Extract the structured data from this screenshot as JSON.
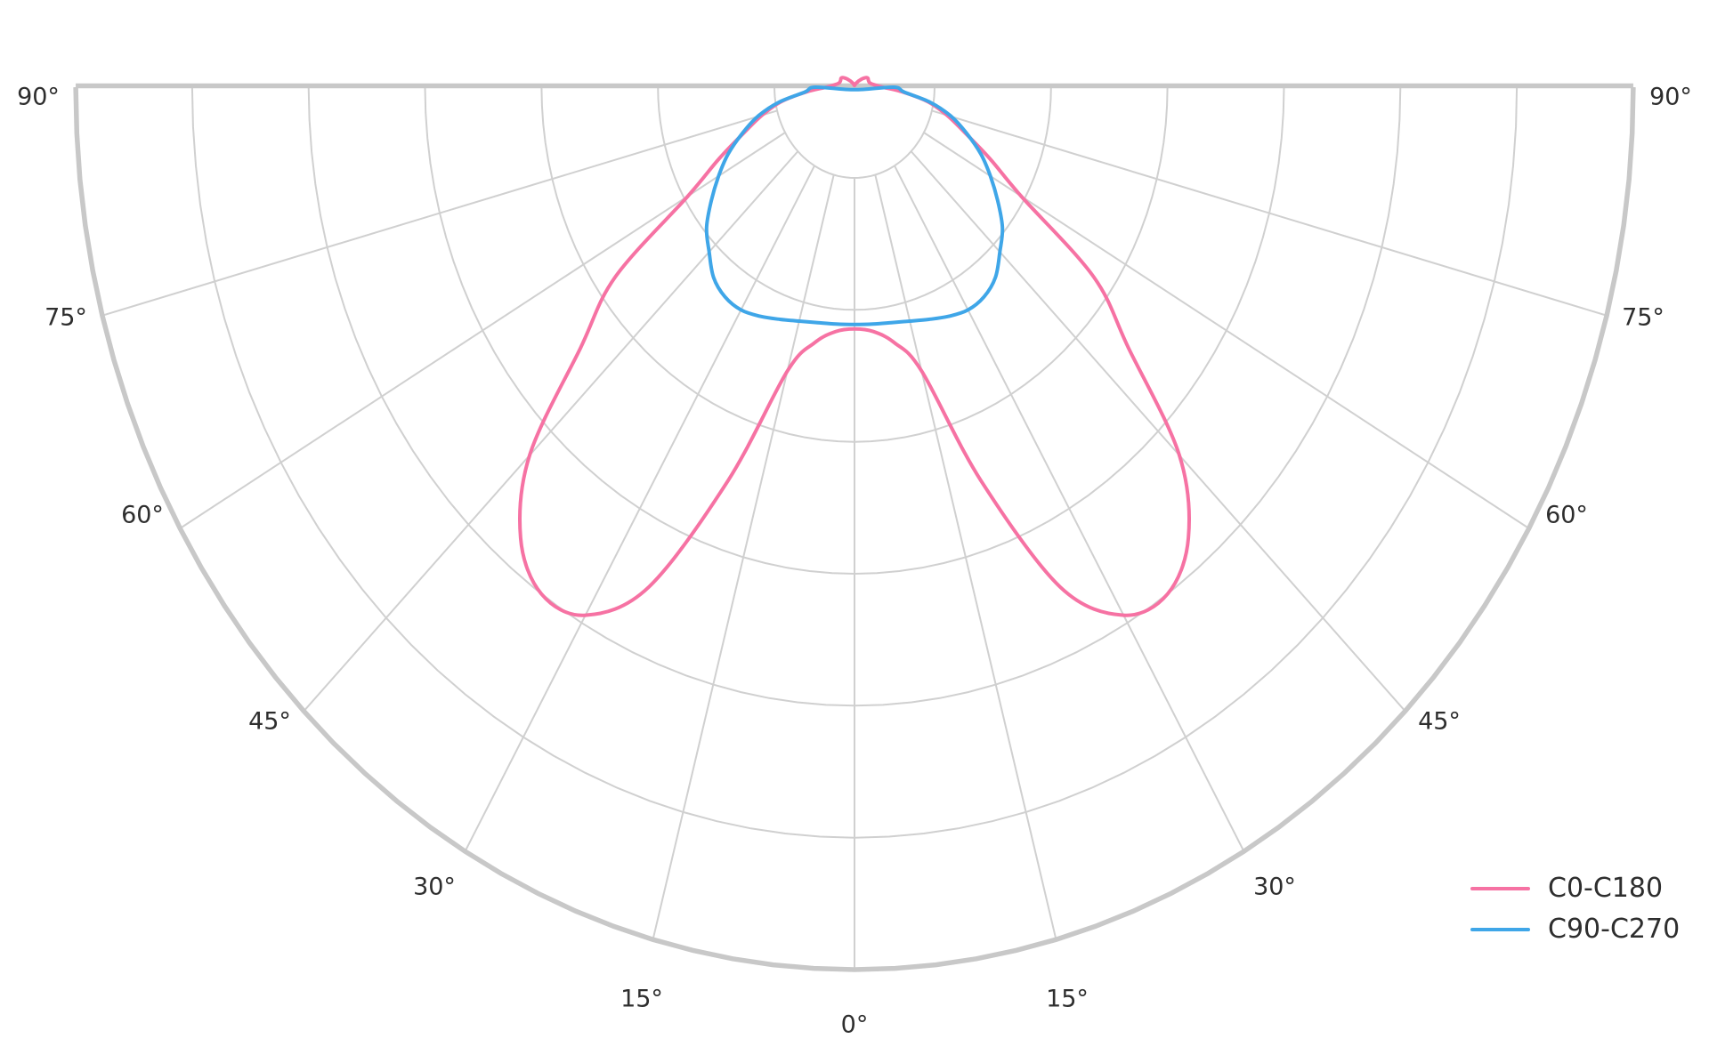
{
  "page": {
    "background": "#ffffff",
    "text_color": "#2e2e2e"
  },
  "chart_data": {
    "type": "polar",
    "subtype": "photometric-intensity-distribution",
    "title": "",
    "angle_unit": "degrees from nadir (0° at bottom, 90° at horizon, mirrored left/right)",
    "angle_ticks_deg": [
      0,
      15,
      30,
      45,
      60,
      75,
      90
    ],
    "angle_tick_labels": [
      "0°",
      "15°",
      "30°",
      "45°",
      "60°",
      "75°",
      "90°"
    ],
    "mirrored_left_right": true,
    "radial_axis": {
      "gridline_rings": 7,
      "tick_labels_visible": false,
      "inner_hole": true,
      "scale_note": "no radial value labels shown; r given as fraction of outer ring (estimated from plot)"
    },
    "grid": {
      "spoke_step_deg": 15,
      "gridline_color": "#d0d0d0",
      "spine_color": "#c8c8c8"
    },
    "series": [
      {
        "name": "C0-C180",
        "color": "#f672a3",
        "gamma_start_deg": 0,
        "gamma_step_deg": 5,
        "r_rel": [
          0.274,
          0.278,
          0.294,
          0.333,
          0.474,
          0.625,
          0.691,
          0.701,
          0.667,
          0.59,
          0.459,
          0.375,
          0.247,
          0.192,
          0.151,
          0.123,
          0.096,
          0.062,
          0.036,
          0.027,
          0.022,
          0.02,
          0.0195,
          0.0195,
          0.02,
          0.019,
          0.016,
          0.013,
          0.01,
          0.008,
          0.006,
          0.005,
          0.004,
          0.003,
          0.0025,
          0.002,
          0.002
        ],
        "shape_note": "batwing: peak near 35° both sides, local max at 0°, tiny uplight bumps just above 90° line near center"
      },
      {
        "name": "C90-C270",
        "color": "#3fa6e8",
        "gamma_start_deg": 0,
        "gamma_step_deg": 5,
        "r_rel": [
          0.269,
          0.2695,
          0.271,
          0.2745,
          0.28,
          0.2865,
          0.2915,
          0.29,
          0.2815,
          0.264,
          0.248,
          0.2245,
          0.2015,
          0.179,
          0.1535,
          0.129,
          0.099,
          0.064,
          0.0505
        ],
        "shape_note": "narrow egg-shaped lobe around nadir, closed flat near the 90° line"
      }
    ],
    "legend": {
      "position": "lower-right",
      "frame": false
    }
  }
}
